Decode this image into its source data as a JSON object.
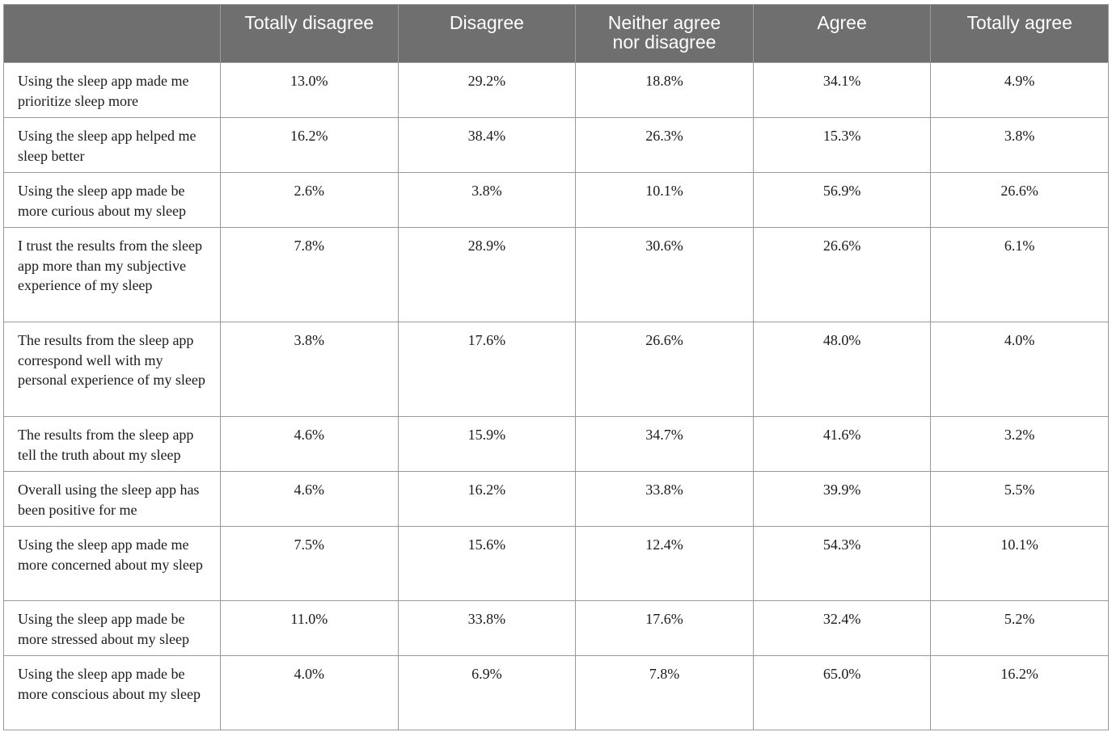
{
  "table": {
    "headers": [
      "",
      "Totally disagree",
      "Disagree",
      "Neither agree\nnor disagree",
      "Agree",
      "Totally agree"
    ],
    "rows": [
      {
        "label": "Using the sleep app made me prioritize sleep more",
        "values": [
          "13.0%",
          "29.2%",
          "18.8%",
          "34.1%",
          "4.9%"
        ]
      },
      {
        "label": "Using the sleep app helped me sleep better",
        "values": [
          "16.2%",
          "38.4%",
          "26.3%",
          "15.3%",
          "3.8%"
        ]
      },
      {
        "label": "Using the sleep app made be more curious about my sleep",
        "values": [
          "2.6%",
          "3.8%",
          "10.1%",
          "56.9%",
          "26.6%"
        ]
      },
      {
        "label": "I trust the results from the sleep app more than my subjective experience of my sleep",
        "values": [
          "7.8%",
          "28.9%",
          "30.6%",
          "26.6%",
          "6.1%"
        ]
      },
      {
        "label": "The results from the sleep app correspond well with my personal experience of my sleep",
        "values": [
          "3.8%",
          "17.6%",
          "26.6%",
          "48.0%",
          "4.0%"
        ]
      },
      {
        "label": "The results from the sleep app tell the truth about my sleep",
        "values": [
          "4.6%",
          "15.9%",
          "34.7%",
          "41.6%",
          "3.2%"
        ]
      },
      {
        "label": "Overall using the sleep app has been positive for me",
        "values": [
          "4.6%",
          "16.2%",
          "33.8%",
          "39.9%",
          "5.5%"
        ]
      },
      {
        "label": "Using the sleep app made me more concerned about my sleep",
        "values": [
          "7.5%",
          "15.6%",
          "12.4%",
          "54.3%",
          "10.1%"
        ]
      },
      {
        "label": "Using the sleep app made be more stressed about my sleep",
        "values": [
          "11.0%",
          "33.8%",
          "17.6%",
          "32.4%",
          "5.2%"
        ]
      },
      {
        "label": "Using the sleep app made be more conscious about my sleep",
        "values": [
          "4.0%",
          "6.9%",
          "7.8%",
          "65.0%",
          "16.2%"
        ]
      }
    ]
  }
}
